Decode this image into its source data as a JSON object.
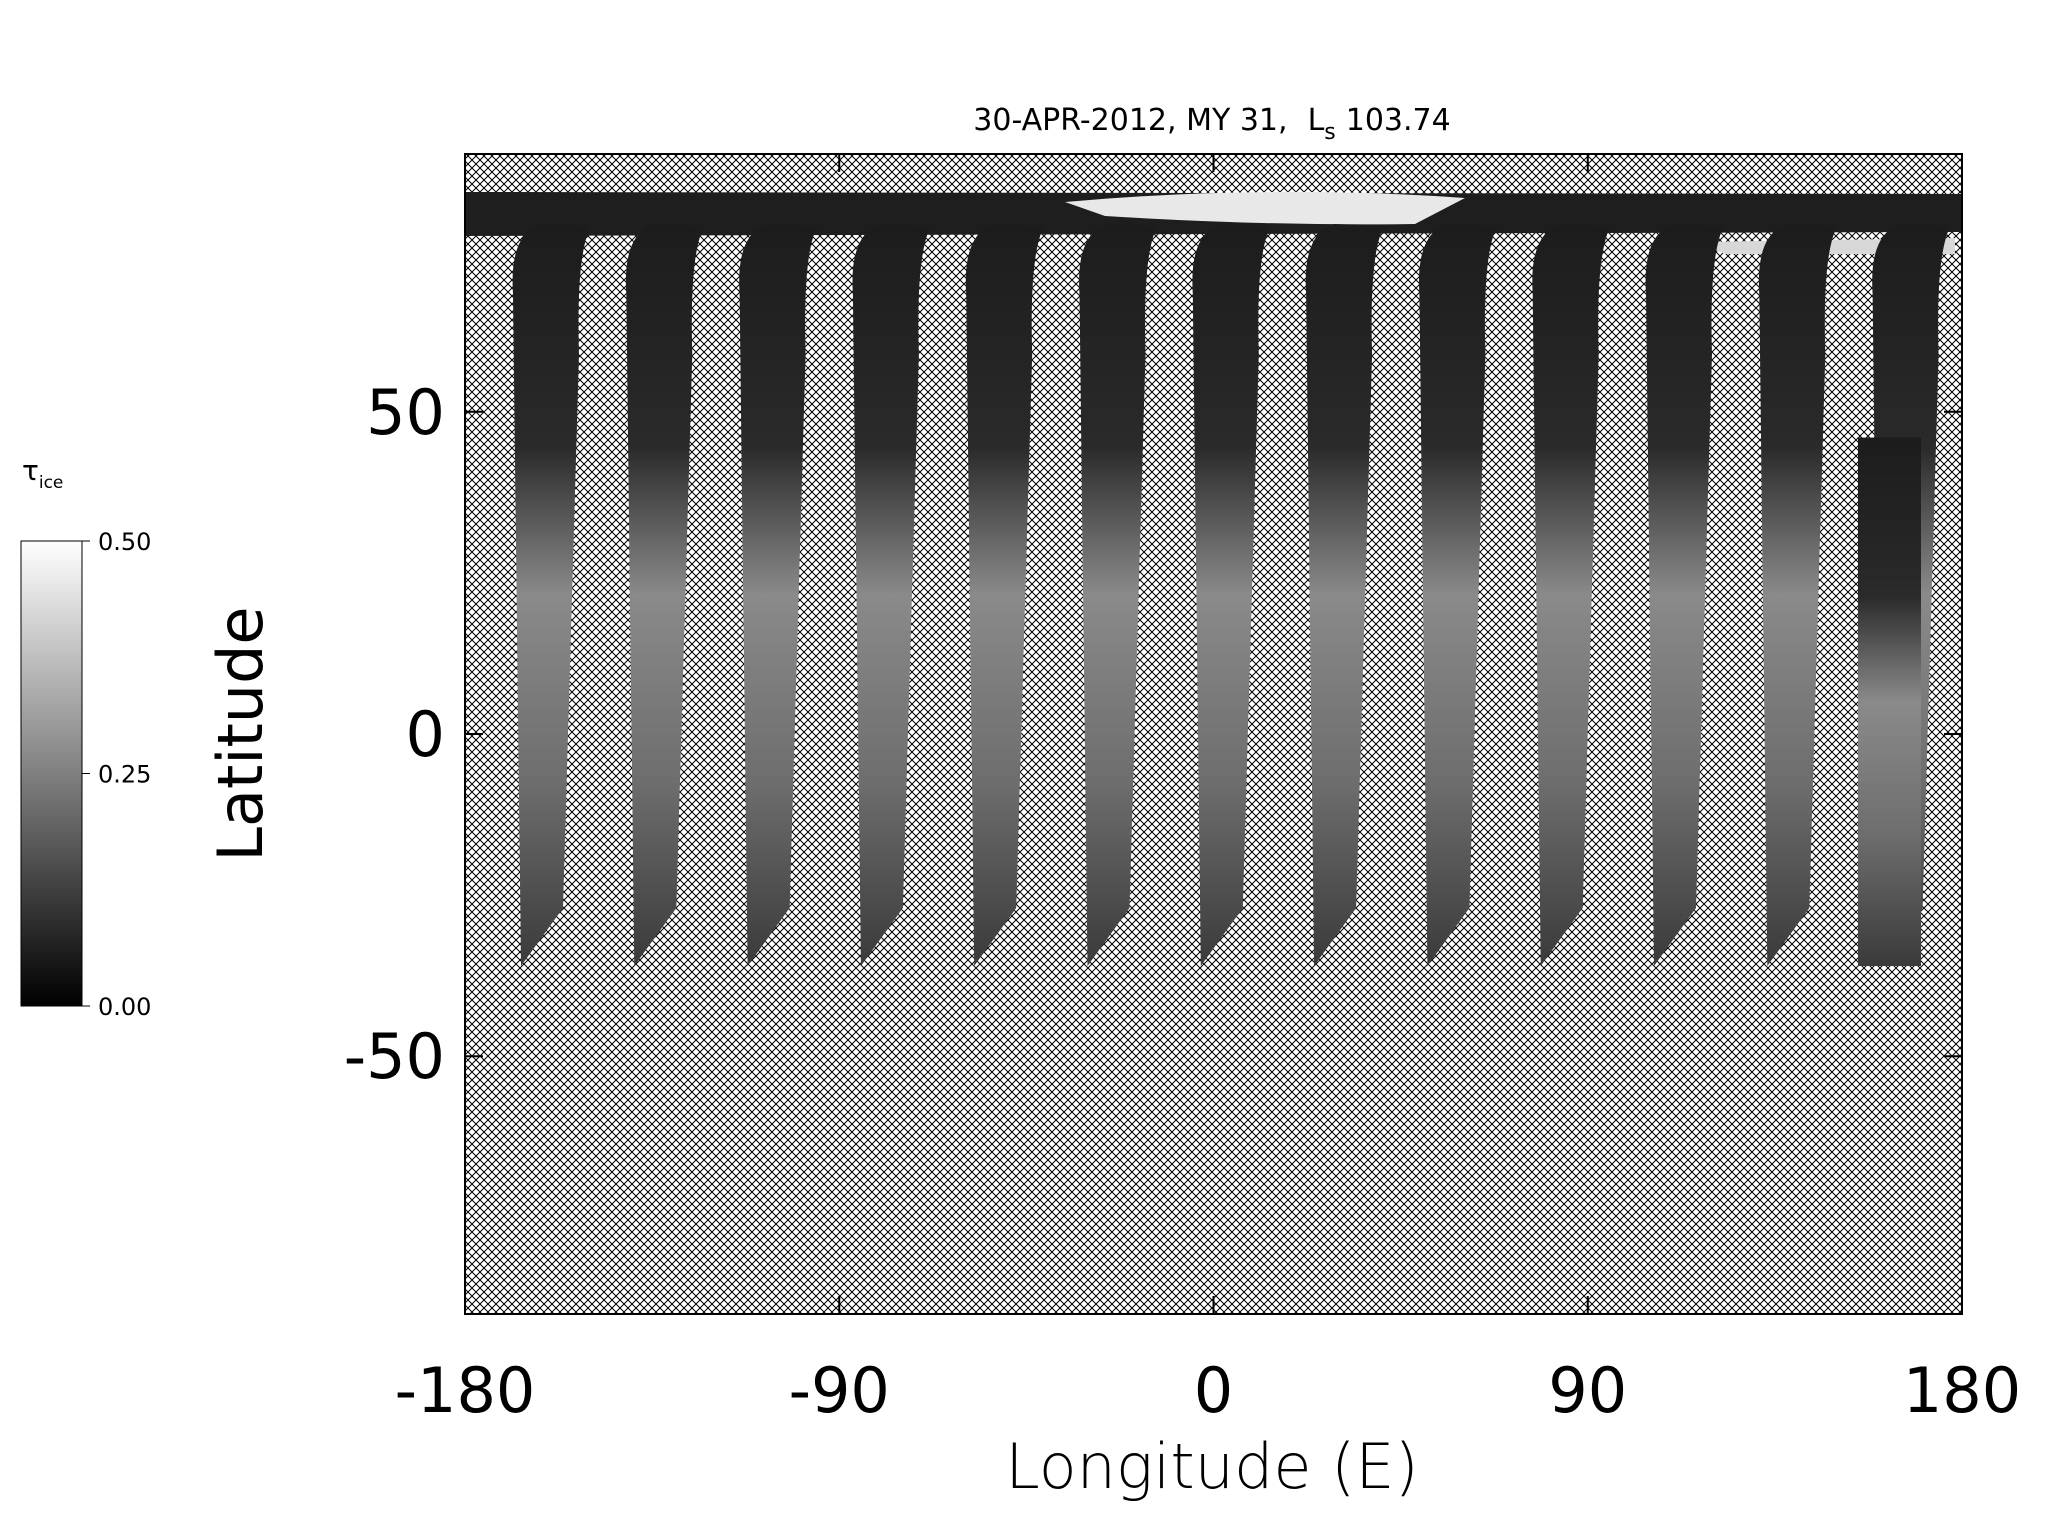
{
  "chart_data": {
    "type": "map",
    "title": {
      "date": "30-APR-2012, MY 31,",
      "ls_symbol": "L",
      "ls_subscript": "s",
      "ls_value": "103.74"
    },
    "x_label": "Longitude (E)",
    "y_label": "Latitude",
    "xlim": [
      -180,
      180
    ],
    "ylim": [
      -90,
      90
    ],
    "xticks": [
      -180,
      -90,
      0,
      90,
      180
    ],
    "yticks": [
      -50,
      0,
      50
    ],
    "colorbar": {
      "symbol": "τ",
      "subscript": "ice",
      "lim": [
        0,
        0.5
      ],
      "ticks": [
        {
          "value": 0,
          "label": "0.00"
        },
        {
          "value": 0.25,
          "label": "0.25"
        },
        {
          "value": 0.5,
          "label": "0.50"
        }
      ]
    }
  }
}
